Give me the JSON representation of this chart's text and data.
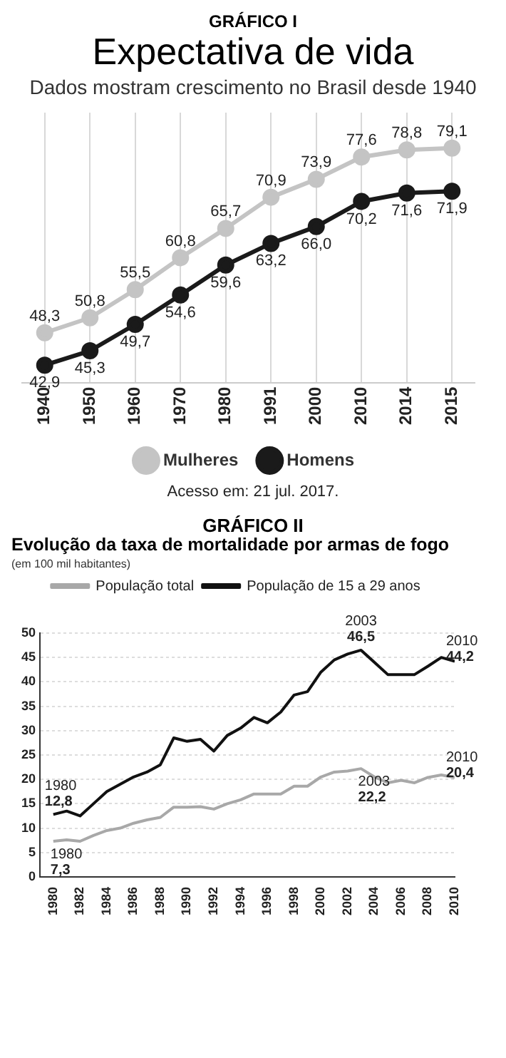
{
  "chart_data": [
    {
      "type": "line",
      "title": "Expectativa de vida",
      "subtitle": "Dados mostram crescimento no Brasil desde 1940",
      "categories": [
        "1940",
        "1950",
        "1960",
        "1970",
        "1980",
        "1991",
        "2000",
        "2010",
        "2014",
        "2015"
      ],
      "series": [
        {
          "name": "Mulheres",
          "color": "#c4c4c4",
          "values": [
            48.3,
            50.8,
            55.5,
            60.8,
            65.7,
            70.9,
            73.9,
            77.6,
            78.8,
            79.1
          ],
          "value_labels": [
            "48,3",
            "50,8",
            "55,5",
            "60,8",
            "65,7",
            "70,9",
            "73,9",
            "77,6",
            "78,8",
            "79,1"
          ]
        },
        {
          "name": "Homens",
          "color": "#1a1a1a",
          "values": [
            42.9,
            45.3,
            49.7,
            54.6,
            59.6,
            63.2,
            66.0,
            70.2,
            71.6,
            71.9
          ],
          "value_labels": [
            "42,9",
            "45,3",
            "49,7",
            "54,6",
            "59,6",
            "63,2",
            "66,0",
            "70,2",
            "71,6",
            "71,9"
          ]
        }
      ],
      "grid": "x",
      "legend": "bottom",
      "marker": "circle",
      "tick_labels": "x",
      "annotations": [
        "GRÁFICO I",
        "Acesso em: 21 jul. 2017."
      ]
    },
    {
      "type": "line",
      "title": "Evolução da taxa de mortalidade por armas de fogo",
      "subtitle": "(em 100 mil habitantes)",
      "x": [
        1980,
        1981,
        1982,
        1983,
        1984,
        1985,
        1986,
        1987,
        1988,
        1989,
        1990,
        1991,
        1992,
        1993,
        1994,
        1995,
        1996,
        1997,
        1998,
        1999,
        2000,
        2001,
        2002,
        2003,
        2004,
        2005,
        2006,
        2007,
        2008,
        2009,
        2010
      ],
      "series": [
        {
          "name": "População total",
          "color": "#a8a8a8",
          "values": [
            7.3,
            7.6,
            7.3,
            8.5,
            9.5,
            10,
            11,
            11.7,
            12.2,
            14.3,
            14.3,
            14.4,
            13.9,
            15,
            15.8,
            17,
            17,
            17,
            18.6,
            18.6,
            20.5,
            21.5,
            21.7,
            22.2,
            20.5,
            19.3,
            19.8,
            19.3,
            20.4,
            20.9,
            20.4
          ]
        },
        {
          "name": "População de 15 a 29 anos",
          "color": "#111111",
          "values": [
            12.8,
            13.5,
            12.5,
            15,
            17.5,
            19,
            20.5,
            21.5,
            23,
            28.5,
            27.8,
            28.2,
            25.8,
            29,
            30.5,
            32.7,
            31.6,
            33.8,
            37.3,
            38,
            42,
            44.5,
            45.7,
            46.5,
            44,
            41.5,
            41.5,
            41.5,
            43.2,
            45,
            44.2
          ]
        }
      ],
      "xlim": [
        1979,
        2010
      ],
      "xticks": [
        1980,
        1982,
        1984,
        1986,
        1988,
        1990,
        1992,
        1994,
        1996,
        1998,
        2000,
        2002,
        2004,
        2006,
        2008,
        2010
      ],
      "ylim": [
        0,
        50
      ],
      "yticks": [
        0,
        5,
        10,
        15,
        20,
        25,
        30,
        35,
        40,
        45,
        50
      ],
      "grid": "y",
      "legend": "top",
      "marker": "none",
      "annotations": [
        "GRÁFICO II",
        {
          "text": "1980\n12,8",
          "x": 1980,
          "y": 12.8
        },
        {
          "text": "1980\n7,3",
          "x": 1980,
          "y": 7.3
        },
        {
          "text": "2003\n46,5",
          "x": 2003,
          "y": 46.5
        },
        {
          "text": "2010\n44,2",
          "x": 2010,
          "y": 44.2
        },
        {
          "text": "2003\n22,2",
          "x": 2003,
          "y": 22.2
        },
        {
          "text": "2010\n20,4",
          "x": 2010,
          "y": 20.4
        }
      ]
    }
  ]
}
